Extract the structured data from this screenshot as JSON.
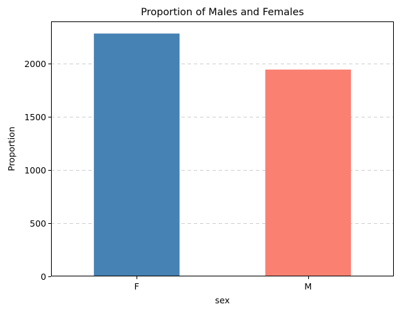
{
  "chart_data": {
    "type": "bar",
    "title": "Proportion of Males and Females",
    "xlabel": "sex",
    "ylabel": "Proportion",
    "categories": [
      "F",
      "M"
    ],
    "values": [
      2285,
      1946
    ],
    "colors": [
      "#4682b4",
      "#fa8072"
    ],
    "ylim": [
      0,
      2399
    ],
    "yticks": [
      0,
      500,
      1000,
      1500,
      2000
    ],
    "grid": {
      "axis": "y",
      "style": "dashed",
      "color": "#d0d0d0"
    }
  }
}
